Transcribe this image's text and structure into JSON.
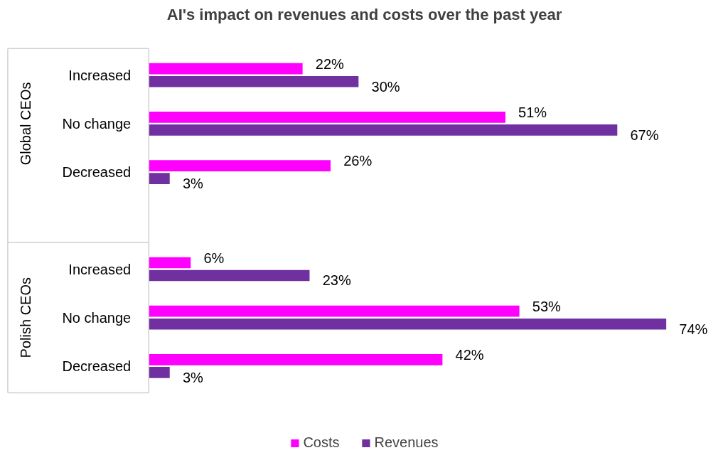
{
  "chart_data": {
    "type": "bar",
    "orientation": "horizontal",
    "title": "AI's impact on revenues and costs over the past year",
    "categories": [
      "Increased",
      "No change",
      "Decreased",
      "Increased",
      "No change",
      "Decreased"
    ],
    "annotations": [
      "Global CEOs",
      "Polish CEOs"
    ],
    "series": [
      {
        "name": "Costs",
        "color": "#ff00ff",
        "values": [
          22,
          51,
          26,
          6,
          53,
          42
        ],
        "value_labels": [
          "22%",
          "51%",
          "26%",
          "6%",
          "53%",
          "42%"
        ]
      },
      {
        "name": "Revenues",
        "color": "#7030a0",
        "values": [
          30,
          67,
          3,
          23,
          74,
          3
        ],
        "value_labels": [
          "30%",
          "67%",
          "3%",
          "23%",
          "74%",
          "3%"
        ]
      }
    ],
    "legend": "bottom",
    "grid": false
  }
}
